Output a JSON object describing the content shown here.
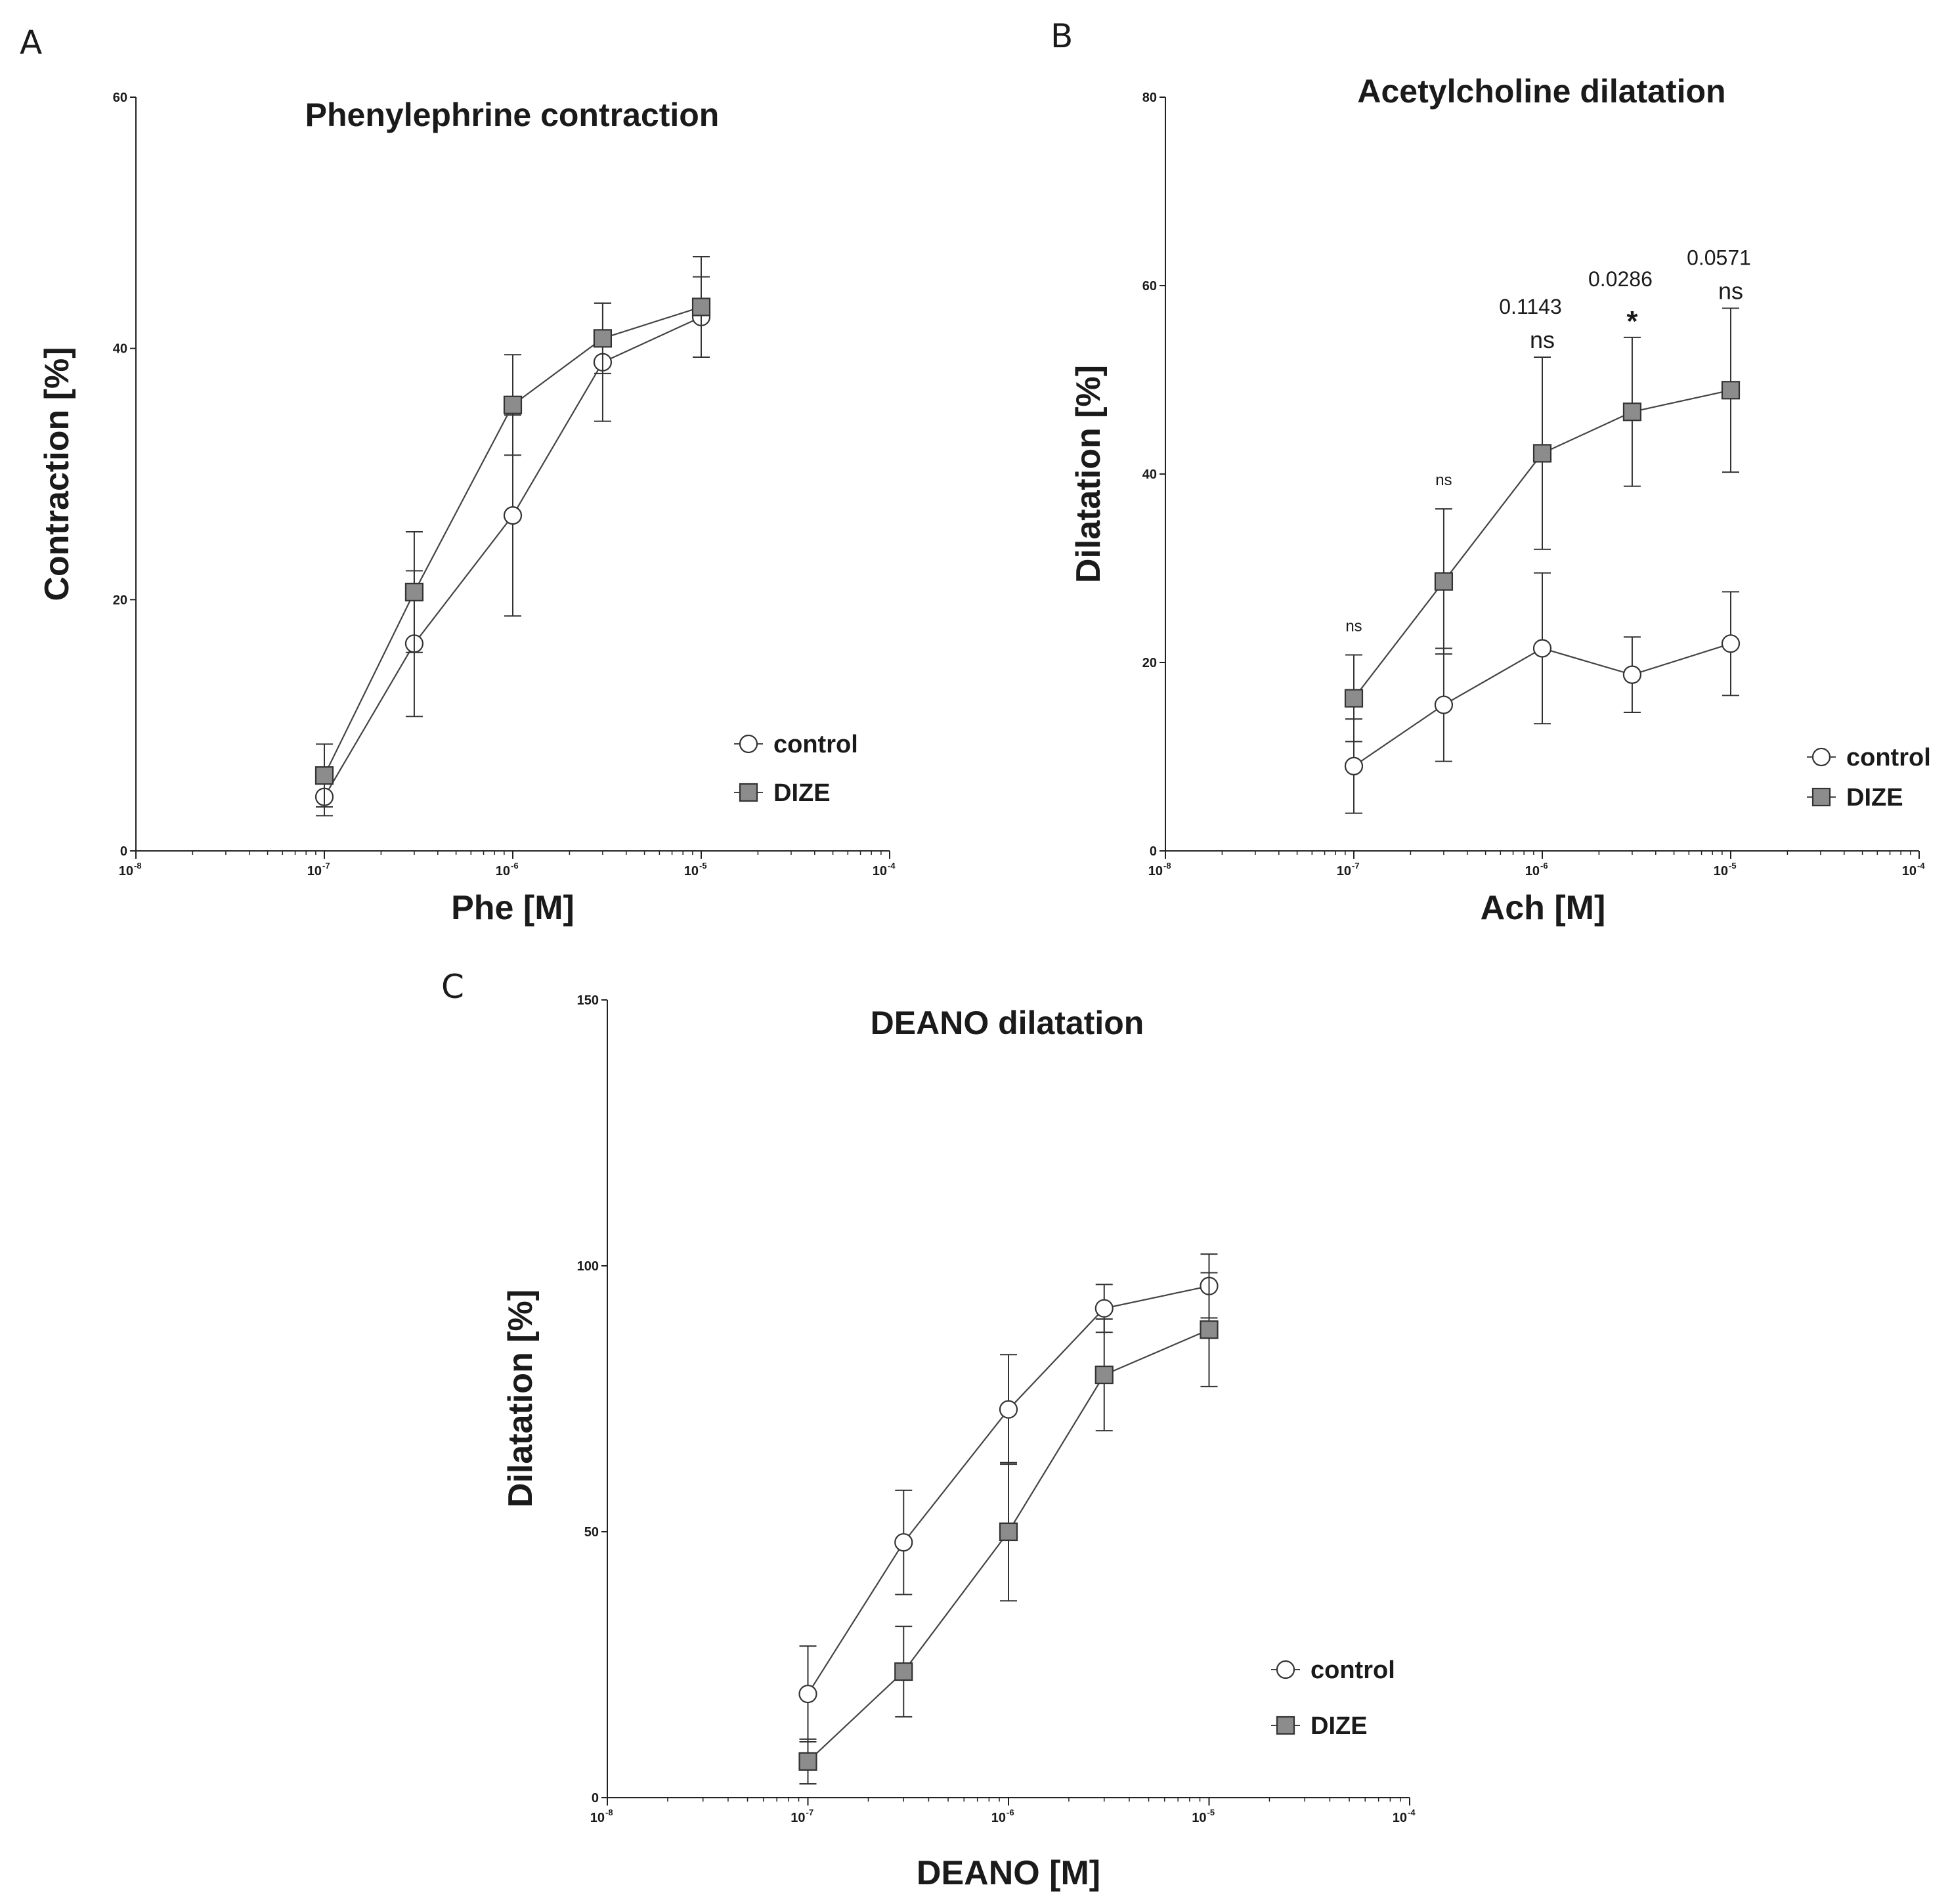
{
  "chart_data": [
    {
      "type": "line",
      "panel": "A",
      "title": "Phenylephrine contraction",
      "xlabel": "Phe [M]",
      "ylabel": "Contraction [%]",
      "xscale": "log",
      "xlim_exp": [
        -8,
        -4
      ],
      "ylim": [
        0,
        60
      ],
      "yticks": [
        0,
        20,
        40,
        60
      ],
      "xtick_labels": [
        {
          "base": "10",
          "exp": "-8"
        },
        {
          "base": "10",
          "exp": "-7"
        },
        {
          "base": "10",
          "exp": "-6"
        },
        {
          "base": "10",
          "exp": "-5"
        },
        {
          "base": "10",
          "exp": "-4"
        }
      ],
      "x": [
        1e-07,
        3e-07,
        1e-06,
        3e-06,
        1e-05
      ],
      "legend": {
        "placement": "lower-right",
        "entries": [
          "control",
          "DIZE"
        ]
      },
      "series": [
        {
          "name": "control",
          "marker": "circle",
          "values": [
            4.3,
            16.5,
            26.7,
            38.9,
            42.5
          ],
          "errors": [
            1.5,
            5.8,
            8.0,
            4.7,
            3.2
          ]
        },
        {
          "name": "DIZE",
          "marker": "square",
          "values": [
            6.0,
            20.6,
            35.5,
            40.8,
            43.3
          ],
          "errors": [
            2.5,
            4.8,
            4.0,
            2.8,
            4.0
          ]
        }
      ],
      "annotations": []
    },
    {
      "type": "line",
      "panel": "B",
      "title": "Acetylcholine dilatation",
      "xlabel": "Ach [M]",
      "ylabel": "Dilatation [%]",
      "xscale": "log",
      "xlim_exp": [
        -8,
        -4
      ],
      "ylim": [
        0,
        80
      ],
      "yticks": [
        0,
        20,
        40,
        60,
        80
      ],
      "xtick_labels": [
        {
          "base": "10",
          "exp": "-8"
        },
        {
          "base": "10",
          "exp": "-7"
        },
        {
          "base": "10",
          "exp": "-6"
        },
        {
          "base": "10",
          "exp": "-5"
        },
        {
          "base": "10",
          "exp": "-4"
        }
      ],
      "x": [
        1e-07,
        3e-07,
        1e-06,
        3e-06,
        1e-05
      ],
      "legend": {
        "placement": "lower-right",
        "entries": [
          "control",
          "DIZE"
        ]
      },
      "series": [
        {
          "name": "control",
          "marker": "circle",
          "values": [
            9.0,
            15.5,
            21.5,
            18.7,
            22.0
          ],
          "errors": [
            5.0,
            6.0,
            8.0,
            4.0,
            5.5
          ]
        },
        {
          "name": "DIZE",
          "marker": "square",
          "values": [
            16.2,
            28.6,
            42.2,
            46.6,
            48.9
          ],
          "errors": [
            4.6,
            7.7,
            10.2,
            7.9,
            8.7
          ]
        }
      ],
      "annotations": [
        {
          "x": 1e-07,
          "lines": [
            {
              "text": "ns",
              "style": "small"
            }
          ]
        },
        {
          "x": 3e-07,
          "lines": [
            {
              "text": "ns",
              "style": "small"
            }
          ]
        },
        {
          "x": 1e-06,
          "lines": [
            {
              "text": "0.1143",
              "style": "p"
            },
            {
              "text": "ns",
              "style": "ns"
            }
          ]
        },
        {
          "x": 3e-06,
          "lines": [
            {
              "text": "0.0286",
              "style": "p"
            },
            {
              "text": "*",
              "style": "star"
            }
          ]
        },
        {
          "x": 1e-05,
          "lines": [
            {
              "text": "0.0571",
              "style": "p"
            },
            {
              "text": "ns",
              "style": "ns"
            }
          ]
        }
      ]
    },
    {
      "type": "line",
      "panel": "C",
      "title": "DEANO dilatation",
      "xlabel": "DEANO [M]",
      "ylabel": "Dilatation [%]",
      "xscale": "log",
      "xlim_exp": [
        -8,
        -4
      ],
      "ylim": [
        0,
        150
      ],
      "yticks": [
        0,
        50,
        100,
        150
      ],
      "xtick_labels": [
        {
          "base": "10",
          "exp": "-8"
        },
        {
          "base": "10",
          "exp": "-7"
        },
        {
          "base": "10",
          "exp": "-6"
        },
        {
          "base": "10",
          "exp": "-5"
        },
        {
          "base": "10",
          "exp": "-4"
        }
      ],
      "x": [
        1e-07,
        3e-07,
        1e-06,
        3e-06,
        1e-05
      ],
      "legend": {
        "placement": "lower-right",
        "entries": [
          "control",
          "DIZE"
        ]
      },
      "series": [
        {
          "name": "control",
          "marker": "circle",
          "values": [
            19.5,
            48.0,
            73.0,
            92.0,
            96.2
          ],
          "errors": [
            9.0,
            9.8,
            10.3,
            4.5,
            6.0
          ]
        },
        {
          "name": "DIZE",
          "marker": "square",
          "values": [
            6.8,
            23.7,
            50.0,
            79.5,
            88.0
          ],
          "errors": [
            4.2,
            8.5,
            13.0,
            10.5,
            10.7
          ]
        }
      ],
      "annotations": []
    }
  ]
}
